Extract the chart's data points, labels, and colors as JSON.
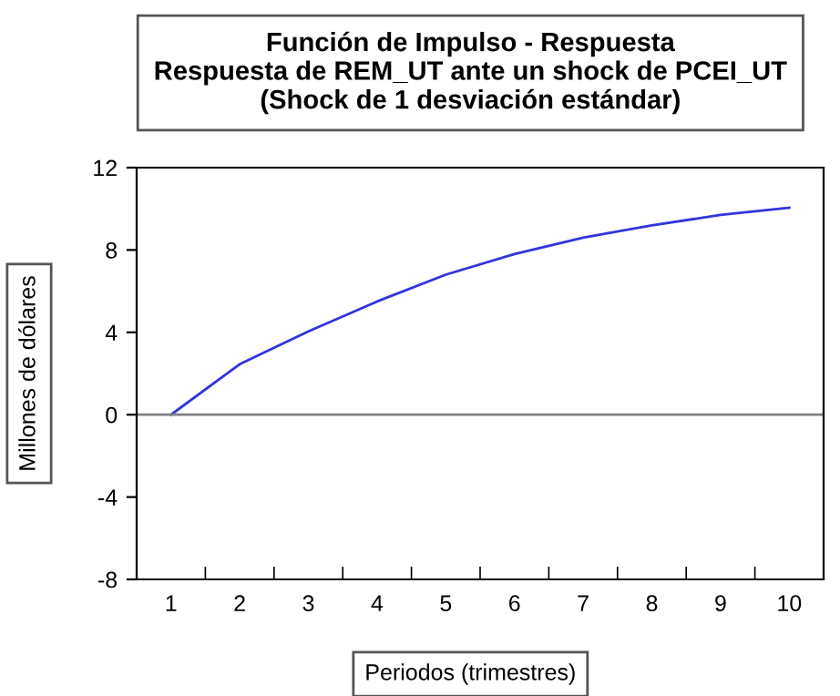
{
  "chart_data": {
    "type": "line",
    "title": "Función de Impulso - Respuesta\nRespuesta de REM_UT ante un shock de PCEI_UT\n(Shock de 1 desviación estándar)",
    "xlabel": "Periodos (trimestres)",
    "ylabel": "Millones de dólares",
    "categories": [
      "1",
      "2",
      "3",
      "4",
      "5",
      "6",
      "7",
      "8",
      "9",
      "10"
    ],
    "series": [
      {
        "color": "#3333dd",
        "values": [
          0,
          2.45,
          4.05,
          5.5,
          6.8,
          7.8,
          8.6,
          9.2,
          9.7,
          10.05
        ]
      }
    ],
    "ylim": [
      -8,
      12
    ],
    "yticks": [
      -8,
      -4,
      0,
      4,
      8,
      12
    ],
    "ref_lines": [
      {
        "axis": "y",
        "value": 0,
        "color": "#808080"
      }
    ],
    "grid": false,
    "legend": false,
    "marker": "none",
    "line_style": "solid"
  }
}
